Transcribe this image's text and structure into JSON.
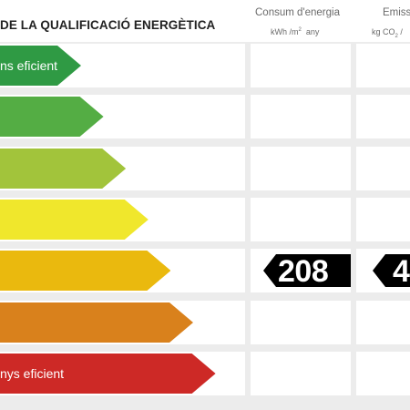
{
  "header": {
    "title": "DE LA QUALIFICACIÓ ENERGÈTICA",
    "col_energy": {
      "title": "Consum d'energia",
      "unit_base": "kWh /m",
      "unit_sup": "2",
      "unit_tail": "  any"
    },
    "col_emission": {
      "title": "Emissi",
      "unit_base": "kg CO",
      "unit_sub": "2",
      "unit_tail": " /"
    }
  },
  "rating": {
    "rows": [
      {
        "color": "#2f9a44",
        "label": "ns eficient"
      },
      {
        "color": "#54ad44",
        "label": ""
      },
      {
        "color": "#a2c43b",
        "label": ""
      },
      {
        "color": "#f0e72c",
        "label": ""
      },
      {
        "color": "#eab90e",
        "label": ""
      },
      {
        "color": "#d9811c",
        "label": ""
      },
      {
        "color": "#cd2926",
        "label": "nys eficient"
      }
    ],
    "energy_value": "208",
    "emission_value": "4",
    "value_row": 4,
    "badge_color": "#000000"
  }
}
